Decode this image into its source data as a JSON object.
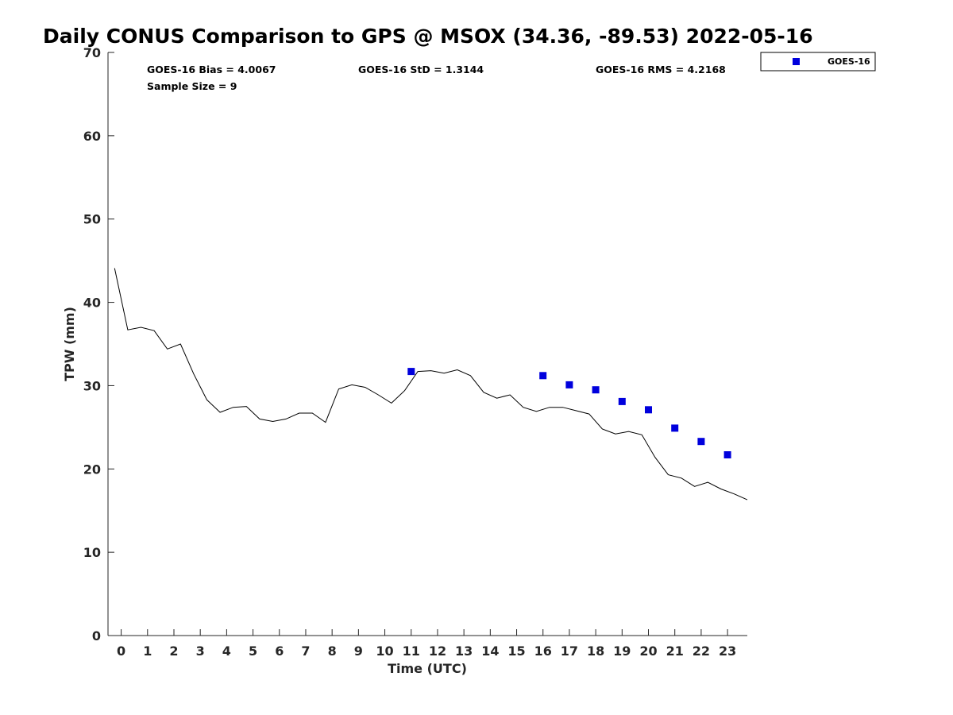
{
  "chart_data": {
    "type": "line",
    "title": "Daily CONUS Comparison to GPS @ MSOX (34.36, -89.53) 2022-05-16",
    "xlabel": "Time (UTC)",
    "ylabel": "TPW (mm)",
    "xlim": [
      -0.5,
      23.75
    ],
    "ylim": [
      0,
      70
    ],
    "x_ticks": [
      0,
      1,
      2,
      3,
      4,
      5,
      6,
      7,
      8,
      9,
      10,
      11,
      12,
      13,
      14,
      15,
      16,
      17,
      18,
      19,
      20,
      21,
      22,
      23
    ],
    "y_ticks": [
      0,
      10,
      20,
      30,
      40,
      50,
      60,
      70
    ],
    "grid": false,
    "legend_position": "top-right outside plot",
    "legend": [
      "GOES-16"
    ],
    "stats": {
      "bias": "GOES-16 Bias = 4.0067",
      "std": "GOES-16 StD = 1.3144",
      "rms": "GOES-16 RMS = 4.2168",
      "sample": "Sample Size = 9"
    },
    "series": [
      {
        "kind": "line",
        "color": "#000000",
        "x": [
          -0.25,
          0.25,
          0.75,
          1.25,
          1.75,
          2.25,
          2.75,
          3.25,
          3.75,
          4.25,
          4.75,
          5.25,
          5.75,
          6.25,
          6.75,
          7.25,
          7.75,
          8.25,
          8.75,
          9.25,
          9.75,
          10.25,
          10.75,
          11.25,
          11.75,
          12.25,
          12.75,
          13.25,
          13.75,
          14.25,
          14.75,
          15.25,
          15.75,
          16.25,
          16.75,
          17.25,
          17.75,
          18.25,
          18.75,
          19.25,
          19.75,
          20.25,
          20.75,
          21.25,
          21.75,
          22.25,
          22.75,
          23.25,
          23.75
        ],
        "y": [
          44.1,
          36.7,
          37.0,
          36.6,
          34.4,
          35.0,
          31.4,
          28.3,
          26.8,
          27.4,
          27.5,
          26.0,
          25.7,
          26.0,
          26.7,
          26.7,
          25.6,
          29.6,
          30.1,
          29.8,
          28.9,
          27.9,
          29.4,
          31.7,
          31.8,
          31.5,
          31.9,
          31.2,
          29.2,
          28.5,
          28.9,
          27.4,
          26.9,
          27.4,
          27.4,
          27.0,
          26.6,
          24.8,
          24.2,
          24.5,
          24.1,
          21.4,
          19.3,
          18.9,
          17.9,
          18.4,
          17.6,
          17.0,
          16.3
        ]
      },
      {
        "kind": "scatter",
        "name": "GOES-16",
        "color": "#0000dd",
        "x": [
          11,
          16,
          17,
          18,
          19,
          20,
          21,
          22,
          23
        ],
        "y": [
          31.7,
          31.2,
          30.1,
          29.5,
          28.1,
          27.1,
          24.9,
          23.3,
          21.7
        ]
      }
    ]
  }
}
